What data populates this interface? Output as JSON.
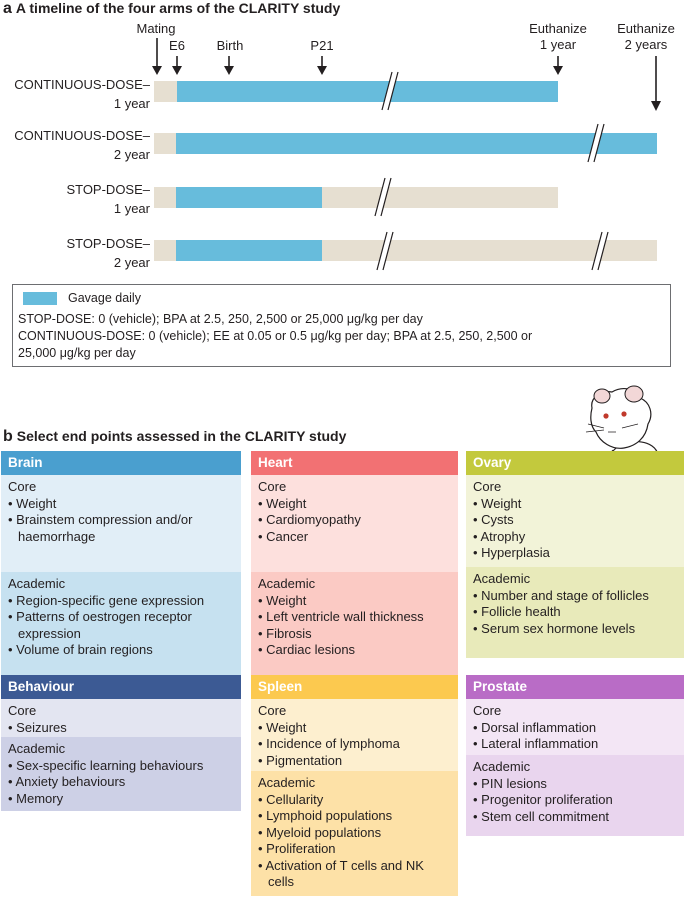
{
  "panel_a": {
    "letter": "a",
    "title": "A timeline of the four arms of the CLARITY study",
    "events": {
      "mating": "Mating",
      "e6": "E6",
      "birth": "Birth",
      "p21": "P21",
      "euthanize_1y_line1": "Euthanize",
      "euthanize_1y_line2": "1 year",
      "euthanize_2y_line1": "Euthanize",
      "euthanize_2y_line2": "2 years"
    },
    "arms": [
      {
        "line1": "CONTINUOUS-DOSE–",
        "line2": "1 year"
      },
      {
        "line1": "CONTINUOUS-DOSE–",
        "line2": "2 year"
      },
      {
        "line1": "STOP-DOSE–",
        "line2": "1 year"
      },
      {
        "line1": "STOP-DOSE–",
        "line2": "2 year"
      }
    ],
    "legend": {
      "swatch_label": "Gavage daily",
      "line1": "STOP-DOSE: 0 (vehicle); BPA at 2.5, 250, 2,500 or 25,000 μg/kg per day",
      "line2": "CONTINUOUS-DOSE: 0 (vehicle); EE at 0.05 or 0.5 μg/kg per day; BPA at 2.5, 250, 2,500 or",
      "line3": "25,000 μg/kg per day"
    },
    "colors": {
      "dosing": "#67bcdc",
      "no_dosing": "#e6dfd1"
    }
  },
  "panel_b": {
    "letter": "b",
    "title": "Select end points assessed in the CLARITY study",
    "cards": {
      "brain": {
        "title": "Brain",
        "core_label": "Core",
        "core": [
          "Weight",
          "Brainstem compression and/or haemorrhage"
        ],
        "academic_label": "Academic",
        "academic": [
          "Region-specific gene expression",
          "Patterns of oestrogen receptor expression",
          "Volume of brain regions"
        ]
      },
      "heart": {
        "title": "Heart",
        "core_label": "Core",
        "core": [
          "Weight",
          "Cardiomyopathy",
          "Cancer"
        ],
        "academic_label": "Academic",
        "academic": [
          "Weight",
          "Left ventricle wall thickness",
          "Fibrosis",
          "Cardiac lesions"
        ]
      },
      "ovary": {
        "title": "Ovary",
        "core_label": "Core",
        "core": [
          "Weight",
          "Cysts",
          "Atrophy",
          "Hyperplasia"
        ],
        "academic_label": "Academic",
        "academic": [
          "Number and stage of follicles",
          "Follicle health",
          "Serum sex hormone levels"
        ]
      },
      "behaviour": {
        "title": "Behaviour",
        "core_label": "Core",
        "core": [
          "Seizures"
        ],
        "academic_label": "Academic",
        "academic": [
          "Sex-specific learning behaviours",
          "Anxiety behaviours",
          "Memory"
        ]
      },
      "spleen": {
        "title": "Spleen",
        "core_label": "Core",
        "core": [
          "Weight",
          "Incidence of lymphoma",
          "Pigmentation"
        ],
        "academic_label": "Academic",
        "academic": [
          "Cellularity",
          "Lymphoid populations",
          "Myeloid populations",
          "Proliferation",
          "Activation of T cells and NK cells"
        ]
      },
      "prostate": {
        "title": "Prostate",
        "core_label": "Core",
        "core": [
          "Dorsal inflammation",
          "Lateral inflammation"
        ],
        "academic_label": "Academic",
        "academic": [
          "PIN lesions",
          "Progenitor proliferation",
          "Stem cell commitment"
        ]
      }
    }
  }
}
